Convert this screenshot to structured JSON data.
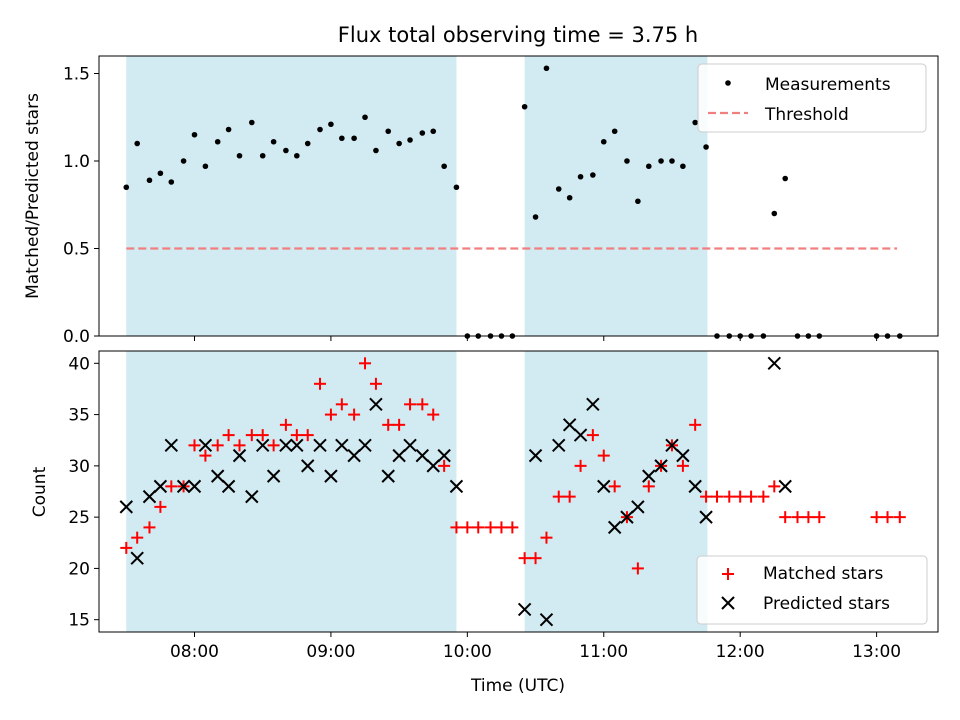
{
  "figure_title": "Flux total observing time = 3.75 h",
  "colors": {
    "measurement": "#000000",
    "threshold": "#f08080",
    "matched": "#ff0000",
    "predicted": "#000000",
    "shade": "#add8e6"
  },
  "chart_data": [
    {
      "type": "scatter",
      "title": "Flux total observing time = 3.75 h",
      "xlabel": "",
      "ylabel": "Matched/Predicted stars",
      "xlim": [
        7.3,
        13.45
      ],
      "ylim": [
        0,
        1.6
      ],
      "yticks": [
        0.0,
        0.5,
        1.0,
        1.5
      ],
      "ytick_labels": [
        "0.0",
        "0.5",
        "1.0",
        "1.5"
      ],
      "xticks": [
        8,
        9,
        10,
        11,
        12,
        13
      ],
      "shaded_intervals": [
        [
          7.5,
          9.92
        ],
        [
          10.42,
          11.76
        ]
      ],
      "threshold": {
        "y": 0.5,
        "x_start": 7.5,
        "x_end": 13.15
      },
      "legend": {
        "position": "top-right",
        "entries": [
          "Measurements",
          "Threshold"
        ]
      },
      "series": [
        {
          "name": "Measurements",
          "x": [
            7.5,
            7.58,
            7.67,
            7.75,
            7.83,
            7.92,
            8.0,
            8.08,
            8.17,
            8.25,
            8.33,
            8.42,
            8.5,
            8.58,
            8.67,
            8.75,
            8.83,
            8.92,
            9.0,
            9.08,
            9.17,
            9.25,
            9.33,
            9.42,
            9.5,
            9.58,
            9.67,
            9.75,
            9.83,
            9.92,
            10.0,
            10.08,
            10.17,
            10.25,
            10.33,
            10.42,
            10.5,
            10.58,
            10.67,
            10.75,
            10.83,
            10.92,
            11.0,
            11.08,
            11.17,
            11.25,
            11.33,
            11.42,
            11.5,
            11.58,
            11.67,
            11.75,
            11.83,
            11.92,
            12.0,
            12.08,
            12.17,
            12.25,
            12.33,
            12.42,
            12.5,
            12.58,
            13.0,
            13.08,
            13.17
          ],
          "y": [
            0.85,
            1.1,
            0.89,
            0.93,
            0.88,
            1.0,
            1.15,
            0.97,
            1.11,
            1.18,
            1.03,
            1.22,
            1.03,
            1.11,
            1.06,
            1.03,
            1.1,
            1.18,
            1.21,
            1.13,
            1.13,
            1.25,
            1.06,
            1.17,
            1.1,
            1.12,
            1.16,
            1.17,
            0.97,
            0.85,
            0,
            0,
            0,
            0,
            0,
            1.31,
            0.68,
            1.53,
            0.84,
            0.79,
            0.91,
            0.92,
            1.11,
            1.17,
            1.0,
            0.77,
            0.97,
            1.0,
            1.0,
            0.97,
            1.22,
            1.08,
            0,
            0,
            0,
            0,
            0,
            0.7,
            0.9,
            0,
            0,
            0,
            0,
            0,
            0
          ]
        }
      ]
    },
    {
      "type": "scatter",
      "title": "",
      "xlabel": "Time (UTC)",
      "ylabel": "Count",
      "xlim": [
        7.3,
        13.45
      ],
      "ylim": [
        13.8,
        41.2
      ],
      "yticks": [
        15,
        20,
        25,
        30,
        35,
        40
      ],
      "ytick_labels": [
        "15",
        "20",
        "25",
        "30",
        "35",
        "40"
      ],
      "xticks": [
        8,
        9,
        10,
        11,
        12,
        13
      ],
      "xtick_labels": [
        "08:00",
        "09:00",
        "10:00",
        "11:00",
        "12:00",
        "13:00"
      ],
      "shaded_intervals": [
        [
          7.5,
          9.92
        ],
        [
          10.42,
          11.76
        ]
      ],
      "legend": {
        "position": "bottom-right",
        "entries": [
          "Matched stars",
          "Predicted stars"
        ]
      },
      "series": [
        {
          "name": "Matched stars",
          "x": [
            7.5,
            7.58,
            7.67,
            7.75,
            7.83,
            7.92,
            8.0,
            8.08,
            8.17,
            8.25,
            8.33,
            8.42,
            8.5,
            8.58,
            8.67,
            8.75,
            8.83,
            8.92,
            9.0,
            9.08,
            9.17,
            9.25,
            9.33,
            9.42,
            9.5,
            9.58,
            9.67,
            9.75,
            9.83,
            9.92,
            10.0,
            10.08,
            10.17,
            10.25,
            10.33,
            10.42,
            10.5,
            10.58,
            10.67,
            10.75,
            10.83,
            10.92,
            11.0,
            11.08,
            11.17,
            11.25,
            11.33,
            11.42,
            11.5,
            11.58,
            11.67,
            11.75,
            11.83,
            11.92,
            12.0,
            12.08,
            12.17,
            12.25,
            12.33,
            12.42,
            12.5,
            12.58,
            13.0,
            13.08,
            13.17
          ],
          "y": [
            22,
            23,
            24,
            26,
            28,
            28,
            32,
            31,
            32,
            33,
            32,
            33,
            33,
            32,
            34,
            33,
            33,
            38,
            35,
            36,
            35,
            40,
            38,
            34,
            34,
            36,
            36,
            35,
            30,
            24,
            24,
            24,
            24,
            24,
            24,
            21,
            21,
            23,
            27,
            27,
            30,
            33,
            31,
            28,
            25,
            20,
            28,
            30,
            32,
            30,
            34,
            27,
            27,
            27,
            27,
            27,
            27,
            28,
            25,
            25,
            25,
            25,
            25,
            25,
            25
          ]
        },
        {
          "name": "Predicted stars",
          "x": [
            7.5,
            7.58,
            7.67,
            7.75,
            7.83,
            7.92,
            8.0,
            8.08,
            8.17,
            8.25,
            8.33,
            8.42,
            8.5,
            8.58,
            8.67,
            8.75,
            8.83,
            8.92,
            9.0,
            9.08,
            9.17,
            9.25,
            9.33,
            9.42,
            9.5,
            9.58,
            9.67,
            9.75,
            9.83,
            9.92,
            10.42,
            10.5,
            10.58,
            10.67,
            10.75,
            10.83,
            10.92,
            11.0,
            11.08,
            11.17,
            11.25,
            11.33,
            11.42,
            11.5,
            11.58,
            11.67,
            11.75,
            12.25,
            12.33
          ],
          "y": [
            26,
            21,
            27,
            28,
            32,
            28,
            28,
            32,
            29,
            28,
            31,
            27,
            32,
            29,
            32,
            32,
            30,
            32,
            29,
            32,
            31,
            32,
            36,
            29,
            31,
            32,
            31,
            30,
            31,
            28,
            16,
            31,
            15,
            32,
            34,
            33,
            36,
            28,
            24,
            25,
            26,
            29,
            30,
            32,
            31,
            28,
            25,
            40,
            28
          ]
        }
      ]
    }
  ]
}
